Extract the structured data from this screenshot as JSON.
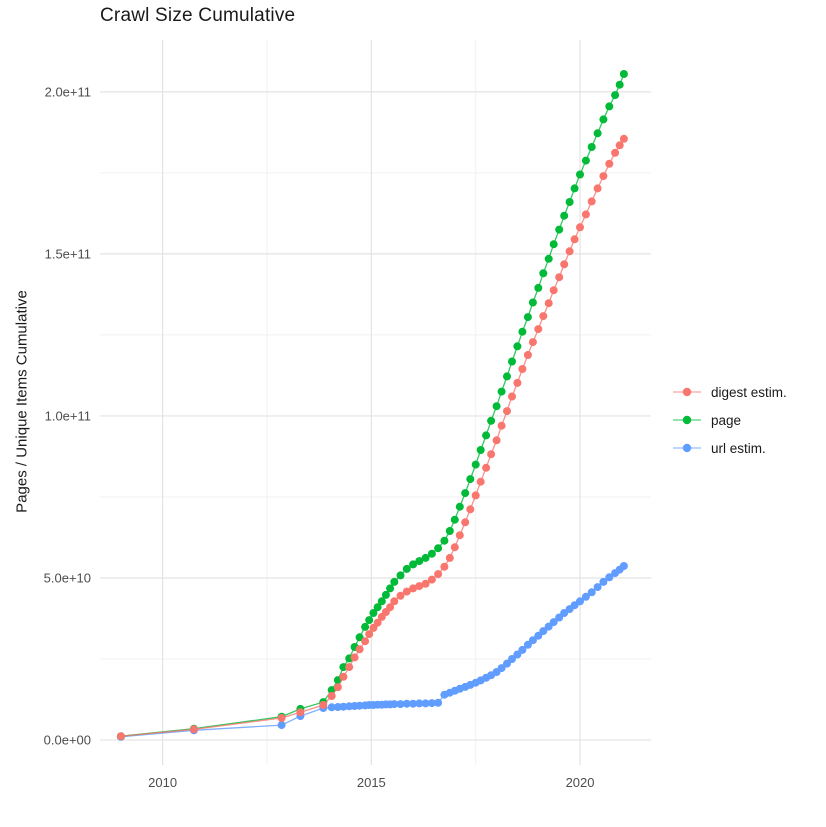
{
  "page_title": "Crawl Size Cumulative",
  "colors": {
    "background": "#ffffff",
    "grid_major": "#e3e3e3",
    "grid_minor": "#f1f1f1",
    "tick_label": "#4d4d4d",
    "title_text": "#1a1a1a",
    "digest": "#F8766D",
    "page": "#00BA38",
    "url": "#619CFF"
  },
  "chart_data": {
    "type": "line",
    "title": "Crawl Size Cumulative",
    "xlabel": "",
    "ylabel": "Pages / Unique Items Cumulative",
    "legend_position": "right",
    "grid": true,
    "xlim": [
      2008.5,
      2021.7
    ],
    "ylim": [
      -7700000000.0,
      216000000000.0
    ],
    "x_ticks": {
      "major": [
        2010,
        2015,
        2020
      ],
      "minor": [
        2012.5,
        2017.5
      ],
      "labels": [
        "2010",
        "2015",
        "2020"
      ]
    },
    "y_ticks": {
      "major": [
        0,
        50000000000.0,
        100000000000.0,
        150000000000.0,
        200000000000.0
      ],
      "minor": [
        25000000000.0,
        75000000000.0,
        125000000000.0,
        175000000000.0
      ],
      "labels": [
        "0.0e+00",
        "5.0e+10",
        "1.0e+11",
        "1.5e+11",
        "2.0e+11"
      ]
    },
    "x": [
      2009.0,
      2010.75,
      2012.85,
      2013.3,
      2013.85,
      2014.05,
      2014.2,
      2014.33,
      2014.47,
      2014.6,
      2014.72,
      2014.85,
      2014.95,
      2015.05,
      2015.15,
      2015.25,
      2015.35,
      2015.45,
      2015.55,
      2015.7,
      2015.85,
      2016.0,
      2016.15,
      2016.3,
      2016.45,
      2016.6,
      2016.75,
      2016.88,
      2017.0,
      2017.12,
      2017.25,
      2017.37,
      2017.5,
      2017.62,
      2017.75,
      2017.87,
      2018.0,
      2018.12,
      2018.25,
      2018.37,
      2018.5,
      2018.62,
      2018.75,
      2018.87,
      2019.0,
      2019.12,
      2019.25,
      2019.37,
      2019.5,
      2019.62,
      2019.75,
      2019.87,
      2020.0,
      2020.14,
      2020.28,
      2020.42,
      2020.56,
      2020.7,
      2020.84,
      2020.95,
      2021.05
    ],
    "series": [
      {
        "name": "digest estim.",
        "color": "#F8766D",
        "values": [
          1200000000.0,
          3300000000.0,
          6800000000.0,
          8600000000.0,
          10800000000.0,
          13600000000.0,
          16300000000.0,
          19500000000.0,
          22500000000.0,
          25500000000.0,
          28000000000.0,
          30500000000.0,
          32700000000.0,
          34600000000.0,
          36200000000.0,
          38000000000.0,
          39500000000.0,
          41000000000.0,
          42800000000.0,
          44500000000.0,
          45800000000.0,
          46800000000.0,
          47500000000.0,
          48200000000.0,
          49500000000.0,
          51200000000.0,
          53500000000.0,
          56200000000.0,
          59500000000.0,
          63200000000.0,
          67200000000.0,
          71200000000.0,
          75500000000.0,
          79700000000.0,
          84000000000.0,
          88200000000.0,
          92500000000.0,
          97000000000.0,
          101500000000.0,
          106000000000.0,
          110200000000.0,
          114500000000.0,
          118800000000.0,
          122800000000.0,
          126800000000.0,
          130800000000.0,
          134800000000.0,
          138800000000.0,
          142800000000.0,
          146800000000.0,
          150800000000.0,
          154500000000.0,
          158200000000.0,
          162200000000.0,
          166200000000.0,
          170200000000.0,
          174000000000.0,
          177800000000.0,
          181200000000.0,
          183500000000.0,
          185500000000.0
        ]
      },
      {
        "name": "page",
        "color": "#00BA38",
        "values": [
          1200000000.0,
          3500000000.0,
          7200000000.0,
          9600000000.0,
          11700000000.0,
          15400000000.0,
          18500000000.0,
          22500000000.0,
          25200000000.0,
          28700000000.0,
          31700000000.0,
          34900000000.0,
          37000000000.0,
          39200000000.0,
          41000000000.0,
          42800000000.0,
          44800000000.0,
          46800000000.0,
          48800000000.0,
          50800000000.0,
          52800000000.0,
          54200000000.0,
          55200000000.0,
          56200000000.0,
          57500000000.0,
          59200000000.0,
          61500000000.0,
          64500000000.0,
          68000000000.0,
          72000000000.0,
          76200000000.0,
          80500000000.0,
          85000000000.0,
          89500000000.0,
          94000000000.0,
          98500000000.0,
          103000000000.0,
          107500000000.0,
          112200000000.0,
          116800000000.0,
          121500000000.0,
          126000000000.0,
          130500000000.0,
          135000000000.0,
          139500000000.0,
          144000000000.0,
          148500000000.0,
          153000000000.0,
          157500000000.0,
          161800000000.0,
          166000000000.0,
          170200000000.0,
          174500000000.0,
          178800000000.0,
          183000000000.0,
          187200000000.0,
          191500000000.0,
          195500000000.0,
          199000000000.0,
          202200000000.0,
          205500000000.0
        ]
      },
      {
        "name": "url estim.",
        "color": "#619CFF",
        "values": [
          1000000000.0,
          3000000000.0,
          4600000000.0,
          7400000000.0,
          9900000000.0,
          10100000000.0,
          10200000000.0,
          10300000000.0,
          10400000000.0,
          10500000000.0,
          10600000000.0,
          10700000000.0,
          10800000000.0,
          10800000000.0,
          10900000000.0,
          10900000000.0,
          11000000000.0,
          11000000000.0,
          11100000000.0,
          11100000000.0,
          11200000000.0,
          11200000000.0,
          11300000000.0,
          11300000000.0,
          11400000000.0,
          11500000000.0,
          14000000000.0,
          14600000000.0,
          15200000000.0,
          15800000000.0,
          16400000000.0,
          17000000000.0,
          17700000000.0,
          18400000000.0,
          19200000000.0,
          20000000000.0,
          21000000000.0,
          22200000000.0,
          23600000000.0,
          25000000000.0,
          26400000000.0,
          27800000000.0,
          29400000000.0,
          30800000000.0,
          32200000000.0,
          33600000000.0,
          35000000000.0,
          36400000000.0,
          37800000000.0,
          39200000000.0,
          40400000000.0,
          41600000000.0,
          42800000000.0,
          44200000000.0,
          45600000000.0,
          47200000000.0,
          48800000000.0,
          50200000000.0,
          51500000000.0,
          52600000000.0,
          53700000000.0
        ]
      }
    ],
    "draw_order": [
      2,
      1,
      0
    ]
  }
}
